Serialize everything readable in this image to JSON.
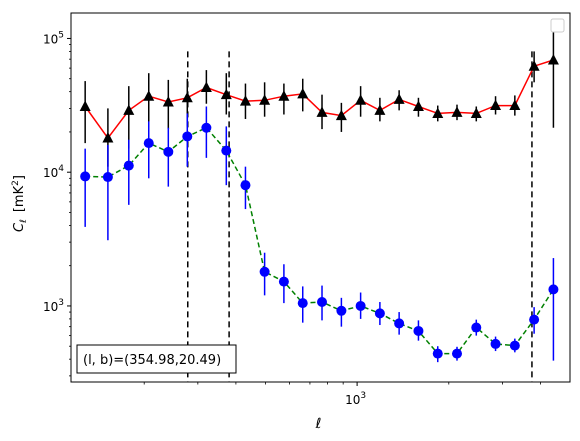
{
  "chart_data": {
    "type": "scatter",
    "title": "",
    "xlabel": "ℓ",
    "ylabel_main": "C",
    "ylabel_sub": "ℓ",
    "ylabel_unit": "[mK",
    "ylabel_unit_sup": "2",
    "ylabel_unit_end": "]",
    "xscale": "log",
    "yscale": "log",
    "xlim": [
      115,
      5000
    ],
    "ylim": [
      270,
      155000
    ],
    "x_ticks": [
      {
        "value": 1000,
        "label_base": "10",
        "label_exp": "3"
      }
    ],
    "y_ticks": [
      {
        "value": 1000,
        "label_base": "10",
        "label_exp": "3"
      },
      {
        "value": 10000,
        "label_base": "10",
        "label_exp": "4"
      },
      {
        "value": 100000,
        "label_base": "10",
        "label_exp": "5"
      }
    ],
    "vlines": [
      278,
      380,
      3750
    ],
    "annotation": "(l, b)=(354.98,20.49)",
    "legend": "top-right",
    "series": [
      {
        "marker": "triangle",
        "marker_color": "#000000",
        "line_color": "#ff0000",
        "line_style": "solid",
        "errorbar_color": "#000000",
        "points": [
          {
            "x": 128,
            "y": 31000,
            "lo": 16500,
            "hi": 48000
          },
          {
            "x": 152,
            "y": 18000,
            "lo": 11000,
            "hi": 30000
          },
          {
            "x": 178,
            "y": 29000,
            "lo": 15000,
            "hi": 44000
          },
          {
            "x": 207,
            "y": 37000,
            "lo": 23000,
            "hi": 55000
          },
          {
            "x": 240,
            "y": 33500,
            "lo": 21000,
            "hi": 49000
          },
          {
            "x": 277,
            "y": 36000,
            "lo": 22000,
            "hi": 50000
          },
          {
            "x": 320,
            "y": 43000,
            "lo": 32500,
            "hi": 58000
          },
          {
            "x": 372,
            "y": 38000,
            "lo": 27000,
            "hi": 55000
          },
          {
            "x": 430,
            "y": 34000,
            "lo": 25000,
            "hi": 46000
          },
          {
            "x": 497,
            "y": 34500,
            "lo": 26000,
            "hi": 47000
          },
          {
            "x": 575,
            "y": 37000,
            "lo": 27000,
            "hi": 46000
          },
          {
            "x": 663,
            "y": 38500,
            "lo": 28500,
            "hi": 50000
          },
          {
            "x": 767,
            "y": 28000,
            "lo": 21000,
            "hi": 38000
          },
          {
            "x": 888,
            "y": 26500,
            "lo": 20000,
            "hi": 33000
          },
          {
            "x": 1027,
            "y": 34500,
            "lo": 26000,
            "hi": 44000
          },
          {
            "x": 1188,
            "y": 29000,
            "lo": 24000,
            "hi": 36000
          },
          {
            "x": 1374,
            "y": 35000,
            "lo": 29000,
            "hi": 41000
          },
          {
            "x": 1590,
            "y": 31000,
            "lo": 26000,
            "hi": 36000
          },
          {
            "x": 1840,
            "y": 27500,
            "lo": 24000,
            "hi": 31500
          },
          {
            "x": 2128,
            "y": 28000,
            "lo": 24500,
            "hi": 32000
          },
          {
            "x": 2462,
            "y": 27500,
            "lo": 24000,
            "hi": 31000
          },
          {
            "x": 2848,
            "y": 31500,
            "lo": 27000,
            "hi": 37000
          },
          {
            "x": 3295,
            "y": 31500,
            "lo": 26500,
            "hi": 37500
          },
          {
            "x": 3812,
            "y": 62000,
            "lo": 47000,
            "hi": 80000
          },
          {
            "x": 4411,
            "y": 69000,
            "lo": 21500,
            "hi": 115000
          }
        ]
      },
      {
        "marker": "circle",
        "marker_color": "#0000ff",
        "line_color": "#008000",
        "line_style": "dashed",
        "errorbar_color": "#0000ff",
        "points": [
          {
            "x": 128,
            "y": 9300,
            "lo": 3900,
            "hi": 15000
          },
          {
            "x": 152,
            "y": 9200,
            "lo": 3100,
            "hi": 16000
          },
          {
            "x": 178,
            "y": 11200,
            "lo": 5700,
            "hi": 17500
          },
          {
            "x": 207,
            "y": 16500,
            "lo": 9000,
            "hi": 24000
          },
          {
            "x": 240,
            "y": 14200,
            "lo": 7800,
            "hi": 21500
          },
          {
            "x": 277,
            "y": 18500,
            "lo": 11000,
            "hi": 27500
          },
          {
            "x": 320,
            "y": 21500,
            "lo": 12800,
            "hi": 31000
          },
          {
            "x": 372,
            "y": 14500,
            "lo": 8000,
            "hi": 22000
          },
          {
            "x": 430,
            "y": 8000,
            "lo": 5300,
            "hi": 11000
          },
          {
            "x": 497,
            "y": 1800,
            "lo": 1200,
            "hi": 2500
          },
          {
            "x": 575,
            "y": 1520,
            "lo": 1050,
            "hi": 2050
          },
          {
            "x": 663,
            "y": 1050,
            "lo": 750,
            "hi": 1400
          },
          {
            "x": 767,
            "y": 1070,
            "lo": 780,
            "hi": 1420
          },
          {
            "x": 888,
            "y": 920,
            "lo": 700,
            "hi": 1150
          },
          {
            "x": 1027,
            "y": 1000,
            "lo": 800,
            "hi": 1260
          },
          {
            "x": 1188,
            "y": 880,
            "lo": 720,
            "hi": 1070
          },
          {
            "x": 1374,
            "y": 740,
            "lo": 610,
            "hi": 900
          },
          {
            "x": 1590,
            "y": 650,
            "lo": 550,
            "hi": 780
          },
          {
            "x": 1840,
            "y": 440,
            "lo": 380,
            "hi": 500
          },
          {
            "x": 2128,
            "y": 440,
            "lo": 390,
            "hi": 495
          },
          {
            "x": 2462,
            "y": 690,
            "lo": 600,
            "hi": 790
          },
          {
            "x": 2848,
            "y": 520,
            "lo": 460,
            "hi": 590
          },
          {
            "x": 3295,
            "y": 505,
            "lo": 450,
            "hi": 570
          },
          {
            "x": 3812,
            "y": 790,
            "lo": 620,
            "hi": 980
          },
          {
            "x": 4411,
            "y": 1330,
            "lo": 390,
            "hi": 2280
          }
        ]
      }
    ]
  }
}
